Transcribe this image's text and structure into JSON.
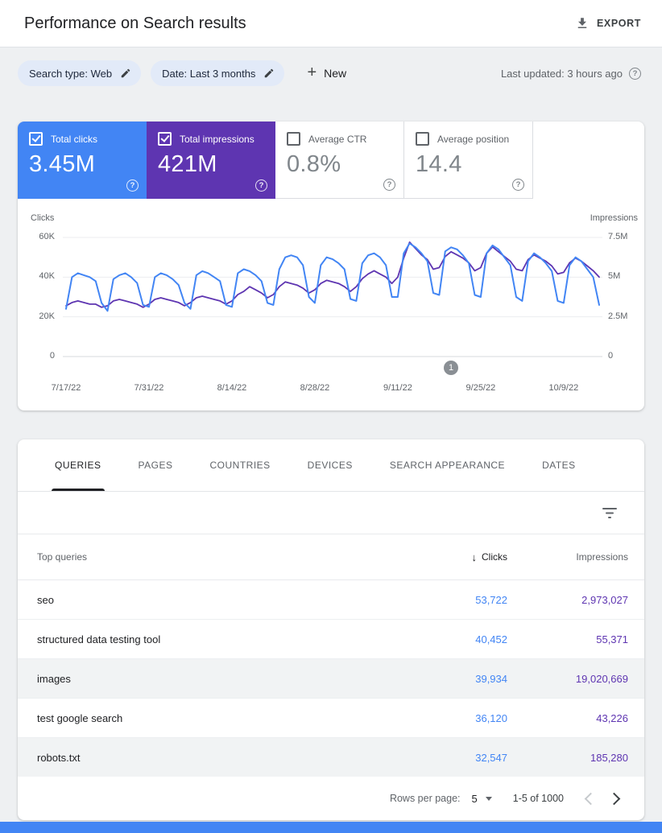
{
  "header": {
    "title": "Performance on Search results",
    "export_label": "EXPORT"
  },
  "filter_bar": {
    "search_type_chip": "Search type: Web",
    "date_chip": "Date: Last 3 months",
    "new_button": "New",
    "last_updated": "Last updated: 3 hours ago"
  },
  "icons": {
    "plus": "+",
    "help": "?",
    "sort_desc": "↓"
  },
  "metrics": [
    {
      "label": "Total clicks",
      "value": "3.45M",
      "selected": true,
      "color": "#4285f4"
    },
    {
      "label": "Total impressions",
      "value": "421M",
      "selected": true,
      "color": "#5e35b1"
    },
    {
      "label": "Average CTR",
      "value": "0.8%",
      "selected": false,
      "color": "#ffffff"
    },
    {
      "label": "Average position",
      "value": "14.4",
      "selected": false,
      "color": "#ffffff"
    }
  ],
  "chart_data": {
    "type": "line",
    "left_axis": {
      "label": "Clicks",
      "ticks_top_down": [
        "60K",
        "40K",
        "20K",
        "0"
      ],
      "max": 60000
    },
    "right_axis": {
      "label": "Impressions",
      "ticks_top_down": [
        "7.5M",
        "5M",
        "2.5M",
        "0"
      ],
      "max": 7500000
    },
    "x_axis": {
      "tick_labels": [
        "7/17/22",
        "7/31/22",
        "8/14/22",
        "8/28/22",
        "9/11/22",
        "9/25/22",
        "10/9/22"
      ],
      "tick_day_indexes": [
        0,
        14,
        28,
        42,
        56,
        70,
        84
      ],
      "total_days": 90
    },
    "series": [
      {
        "name": "Impressions",
        "color": "#5e35b1",
        "unit": "millions",
        "values": [
          3.2,
          3.4,
          3.5,
          3.4,
          3.3,
          3.3,
          3.1,
          3.2,
          3.5,
          3.6,
          3.5,
          3.4,
          3.3,
          3.1,
          3.3,
          3.6,
          3.7,
          3.6,
          3.5,
          3.4,
          3.2,
          3.4,
          3.7,
          3.8,
          3.7,
          3.6,
          3.5,
          3.3,
          3.5,
          3.9,
          4.1,
          4.4,
          4.2,
          4.0,
          3.7,
          3.9,
          4.4,
          4.7,
          4.6,
          4.5,
          4.3,
          4.0,
          4.2,
          4.6,
          4.8,
          4.7,
          4.6,
          4.4,
          4.1,
          4.4,
          4.9,
          5.2,
          5.4,
          5.2,
          5.0,
          4.6,
          5.0,
          6.2,
          7.2,
          6.8,
          6.4,
          6.1,
          5.5,
          5.6,
          6.3,
          6.6,
          6.4,
          6.2,
          5.9,
          5.4,
          5.6,
          6.5,
          6.9,
          6.6,
          6.3,
          6.0,
          5.5,
          5.4,
          6.1,
          6.4,
          6.2,
          6.0,
          5.7,
          5.2,
          5.3,
          5.9,
          6.2,
          6.0,
          5.7,
          5.4,
          5.0
        ]
      },
      {
        "name": "Clicks",
        "color": "#4285f4",
        "unit": "thousands",
        "values": [
          24,
          40,
          42,
          41,
          40,
          38,
          27,
          23,
          39,
          41,
          42,
          40,
          37,
          26,
          25,
          40,
          42,
          41,
          39,
          36,
          27,
          24,
          41,
          43,
          42,
          40,
          38,
          26,
          25,
          42,
          44,
          43,
          41,
          38,
          27,
          26,
          44,
          50,
          51,
          50,
          46,
          30,
          27,
          46,
          50,
          49,
          47,
          44,
          29,
          28,
          47,
          51,
          52,
          50,
          46,
          30,
          30,
          52,
          57,
          55,
          52,
          48,
          32,
          31,
          53,
          55,
          54,
          51,
          47,
          31,
          30,
          52,
          56,
          54,
          50,
          46,
          30,
          28,
          48,
          52,
          50,
          47,
          43,
          28,
          27,
          46,
          50,
          48,
          44,
          40,
          26
        ]
      }
    ],
    "annotation": {
      "label": "1",
      "day_index": 65
    },
    "grid": true,
    "legend_position": "none"
  },
  "tabs": [
    {
      "label": "QUERIES",
      "active": true
    },
    {
      "label": "PAGES",
      "active": false
    },
    {
      "label": "COUNTRIES",
      "active": false
    },
    {
      "label": "DEVICES",
      "active": false
    },
    {
      "label": "SEARCH APPEARANCE",
      "active": false
    },
    {
      "label": "DATES",
      "active": false
    }
  ],
  "table": {
    "header": {
      "queries": "Top queries",
      "clicks": "Clicks",
      "impressions": "Impressions"
    },
    "rows": [
      {
        "query": "seo",
        "clicks": "53,722",
        "impressions": "2,973,027"
      },
      {
        "query": "structured data testing tool",
        "clicks": "40,452",
        "impressions": "55,371"
      },
      {
        "query": "images",
        "clicks": "39,934",
        "impressions": "19,020,669"
      },
      {
        "query": "test google search",
        "clicks": "36,120",
        "impressions": "43,226"
      },
      {
        "query": "robots.txt",
        "clicks": "32,547",
        "impressions": "185,280"
      }
    ]
  },
  "pagination": {
    "rows_per_page_label": "Rows per page:",
    "rows_per_page_value": "5",
    "range": "1-5 of 1000"
  },
  "colors": {
    "clicks_blue": "#4285f4",
    "impressions_purple": "#5e35b1"
  }
}
